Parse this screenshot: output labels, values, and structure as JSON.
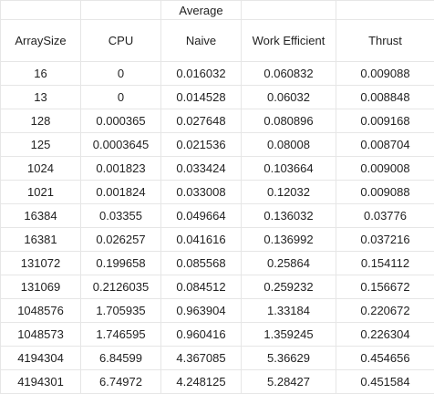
{
  "table": {
    "group_label": "Average",
    "headers": [
      "ArraySize",
      "CPU",
      "Naive",
      "Work Efficient",
      "Thrust"
    ],
    "rows": [
      [
        "16",
        "0",
        "0.016032",
        "0.060832",
        "0.009088"
      ],
      [
        "13",
        "0",
        "0.014528",
        "0.06032",
        "0.008848"
      ],
      [
        "128",
        "0.000365",
        "0.027648",
        "0.080896",
        "0.009168"
      ],
      [
        "125",
        "0.0003645",
        "0.021536",
        "0.08008",
        "0.008704"
      ],
      [
        "1024",
        "0.001823",
        "0.033424",
        "0.103664",
        "0.009008"
      ],
      [
        "1021",
        "0.001824",
        "0.033008",
        "0.12032",
        "0.009088"
      ],
      [
        "16384",
        "0.03355",
        "0.049664",
        "0.136032",
        "0.03776"
      ],
      [
        "16381",
        "0.026257",
        "0.041616",
        "0.136992",
        "0.037216"
      ],
      [
        "131072",
        "0.199658",
        "0.085568",
        "0.25864",
        "0.154112"
      ],
      [
        "131069",
        "0.2126035",
        "0.084512",
        "0.259232",
        "0.156672"
      ],
      [
        "1048576",
        "1.705935",
        "0.963904",
        "1.33184",
        "0.220672"
      ],
      [
        "1048573",
        "1.746595",
        "0.960416",
        "1.359245",
        "0.226304"
      ],
      [
        "4194304",
        "6.84599",
        "4.367085",
        "5.36629",
        "0.454656"
      ],
      [
        "4194301",
        "6.74972",
        "4.248125",
        "5.28427",
        "0.451584"
      ]
    ]
  }
}
